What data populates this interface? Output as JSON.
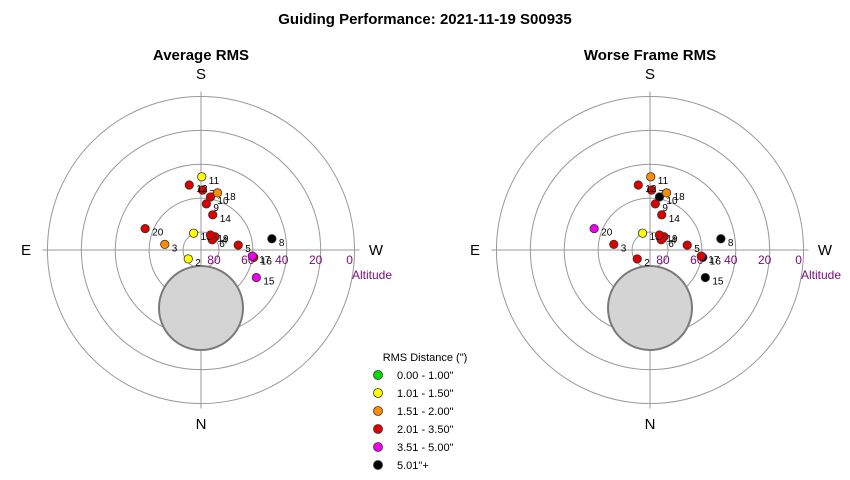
{
  "chart_data": {
    "type": "scatter",
    "title": "Guiding Performance: 2021-11-19 S00935",
    "legend": {
      "title": "RMS Distance (\")",
      "placement": "bottom-center",
      "items": [
        {
          "label": "0.00 - 1.00\"",
          "color": "#00dd00"
        },
        {
          "label": "1.01 - 1.50\"",
          "color": "#ffff00"
        },
        {
          "label": "1.51 - 2.00\"",
          "color": "#ff8c00"
        },
        {
          "label": "2.01 - 3.50\"",
          "color": "#dd0000"
        },
        {
          "label": "3.51 - 5.00\"",
          "color": "#ee00ee"
        },
        {
          "label": "5.01\"+",
          "color": "#000000"
        }
      ]
    },
    "polar": {
      "cardinals": {
        "top": "S",
        "bottom": "N",
        "left": "E",
        "right": "W"
      },
      "altitude_label": "Altitude",
      "altitude_ticks": [
        "80",
        "60",
        "40",
        "20",
        "0"
      ],
      "altitude_tick_values": [
        80,
        60,
        40,
        20,
        0
      ],
      "rings_altitude": [
        80,
        60,
        40,
        20,
        0
      ],
      "zenith_block_color": "#d4d4d4"
    },
    "panels": [
      {
        "name": "Average RMS",
        "points": [
          {
            "label": "2",
            "x": -5.0,
            "y": -3.5,
            "color": "#ffff00"
          },
          {
            "label": "3",
            "x": -14.2,
            "y": 2.2,
            "color": "#ff8c00"
          },
          {
            "label": "4",
            "x": 5.5,
            "y": 5.2,
            "color": "#dd0000"
          },
          {
            "label": "5",
            "x": 14.6,
            "y": 1.9,
            "color": "#dd0000"
          },
          {
            "label": "6",
            "x": 4.4,
            "y": 4.0,
            "color": "#dd0000"
          },
          {
            "label": "7",
            "x": 0.6,
            "y": 23.5,
            "color": "#dd0000"
          },
          {
            "label": "8",
            "x": 27.8,
            "y": 4.4,
            "color": "#000000"
          },
          {
            "label": "9",
            "x": 2.1,
            "y": 18.1,
            "color": "#dd0000"
          },
          {
            "label": "10",
            "x": 3.7,
            "y": 20.8,
            "color": "#dd0000"
          },
          {
            "label": "11",
            "x": 0.3,
            "y": 28.7,
            "color": "#ffff00"
          },
          {
            "label": "12",
            "x": -4.6,
            "y": 25.5,
            "color": "#dd0000"
          },
          {
            "label": "13",
            "x": -2.9,
            "y": 6.6,
            "color": "#ffff00"
          },
          {
            "label": "14",
            "x": 4.6,
            "y": 13.8,
            "color": "#dd0000"
          },
          {
            "label": "15",
            "x": 21.7,
            "y": -10.8,
            "color": "#ee00ee"
          },
          {
            "label": "16",
            "x": 20.7,
            "y": -2.9,
            "color": "#dd0000"
          },
          {
            "label": "17",
            "x": 20.1,
            "y": -2.4,
            "color": "#ee00ee"
          },
          {
            "label": "18",
            "x": 6.5,
            "y": 22.4,
            "color": "#ff8c00"
          },
          {
            "label": "19",
            "x": 3.7,
            "y": 5.9,
            "color": "#dd0000"
          },
          {
            "label": "20",
            "x": -21.9,
            "y": 8.4,
            "color": "#dd0000"
          }
        ]
      },
      {
        "name": "Worse Frame RMS",
        "points": [
          {
            "label": "2",
            "x": -5.0,
            "y": -3.5,
            "color": "#dd0000"
          },
          {
            "label": "3",
            "x": -14.2,
            "y": 2.2,
            "color": "#dd0000"
          },
          {
            "label": "4",
            "x": 5.5,
            "y": 5.2,
            "color": "#dd0000"
          },
          {
            "label": "5",
            "x": 14.6,
            "y": 1.9,
            "color": "#dd0000"
          },
          {
            "label": "6",
            "x": 4.4,
            "y": 4.0,
            "color": "#dd0000"
          },
          {
            "label": "7",
            "x": 0.6,
            "y": 23.5,
            "color": "#dd0000"
          },
          {
            "label": "8",
            "x": 27.8,
            "y": 4.4,
            "color": "#000000"
          },
          {
            "label": "9",
            "x": 2.1,
            "y": 18.1,
            "color": "#dd0000"
          },
          {
            "label": "10",
            "x": 3.7,
            "y": 20.8,
            "color": "#000000"
          },
          {
            "label": "11",
            "x": 0.3,
            "y": 28.7,
            "color": "#ff8c00"
          },
          {
            "label": "12",
            "x": -4.6,
            "y": 25.5,
            "color": "#dd0000"
          },
          {
            "label": "13",
            "x": -2.9,
            "y": 6.6,
            "color": "#ffff00"
          },
          {
            "label": "14",
            "x": 4.6,
            "y": 13.8,
            "color": "#dd0000"
          },
          {
            "label": "15",
            "x": 21.7,
            "y": -10.8,
            "color": "#000000"
          },
          {
            "label": "16",
            "x": 20.7,
            "y": -2.9,
            "color": "#000000"
          },
          {
            "label": "17",
            "x": 20.1,
            "y": -2.4,
            "color": "#dd0000"
          },
          {
            "label": "18",
            "x": 6.5,
            "y": 22.4,
            "color": "#ff8c00"
          },
          {
            "label": "19",
            "x": 3.7,
            "y": 5.9,
            "color": "#dd0000"
          },
          {
            "label": "20",
            "x": -21.9,
            "y": 8.4,
            "color": "#ee00ee"
          }
        ]
      }
    ]
  }
}
